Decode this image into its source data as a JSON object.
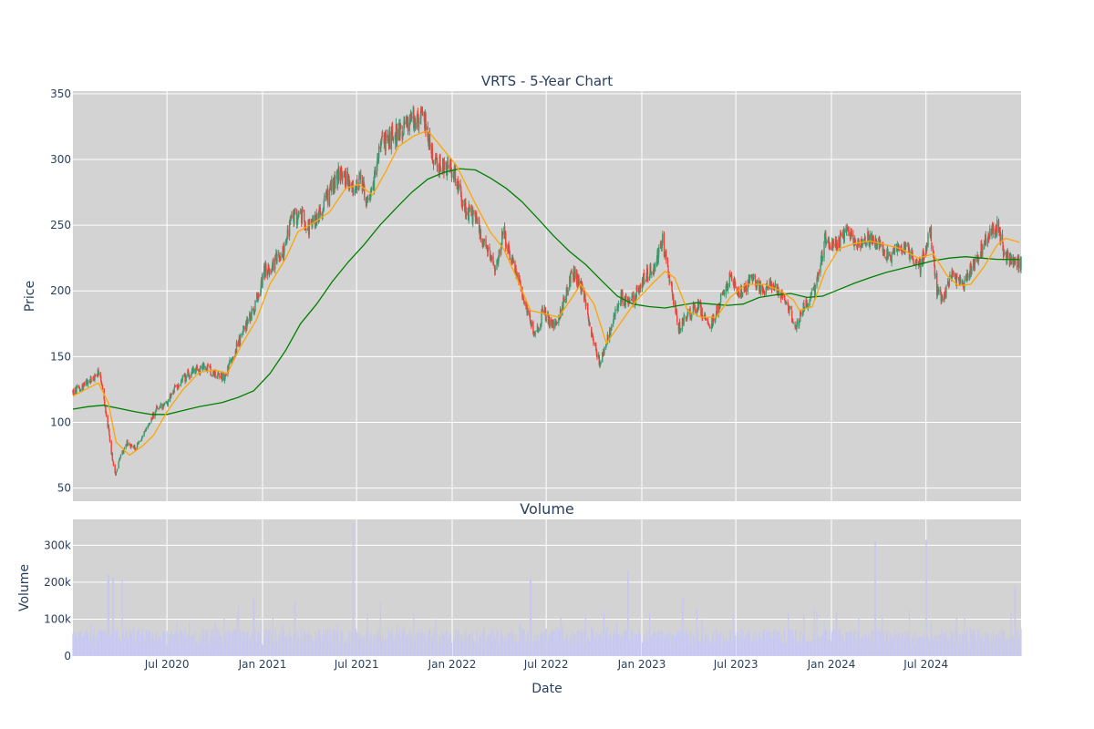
{
  "chart_data": [
    {
      "type": "candlestick",
      "title": "VRTS - 5-Year Chart",
      "ylabel": "Price",
      "ylim": [
        40,
        352
      ],
      "yticks": [
        50,
        100,
        150,
        200,
        250,
        300,
        350
      ],
      "grid": true,
      "legend": "none",
      "colors": {
        "up": "#3d9970",
        "down": "#ef4136",
        "ma_short": "#ffa500",
        "ma_long": "#008000",
        "plot_bg": "#d3d3d3"
      },
      "price_path": [
        {
          "x": "2020-01-02",
          "y": 123
        },
        {
          "x": "2020-01-20",
          "y": 127
        },
        {
          "x": "2020-02-10",
          "y": 133
        },
        {
          "x": "2020-02-21",
          "y": 138
        },
        {
          "x": "2020-03-05",
          "y": 110
        },
        {
          "x": "2020-03-16",
          "y": 78
        },
        {
          "x": "2020-03-23",
          "y": 60
        },
        {
          "x": "2020-04-01",
          "y": 72
        },
        {
          "x": "2020-04-15",
          "y": 85
        },
        {
          "x": "2020-05-01",
          "y": 80
        },
        {
          "x": "2020-05-20",
          "y": 92
        },
        {
          "x": "2020-06-10",
          "y": 110
        },
        {
          "x": "2020-07-01",
          "y": 115
        },
        {
          "x": "2020-07-20",
          "y": 128
        },
        {
          "x": "2020-08-15",
          "y": 138
        },
        {
          "x": "2020-09-10",
          "y": 142
        },
        {
          "x": "2020-10-01",
          "y": 137
        },
        {
          "x": "2020-10-20",
          "y": 135
        },
        {
          "x": "2020-11-05",
          "y": 150
        },
        {
          "x": "2020-11-25",
          "y": 170
        },
        {
          "x": "2020-12-15",
          "y": 185
        },
        {
          "x": "2021-01-05",
          "y": 215
        },
        {
          "x": "2021-01-20",
          "y": 220
        },
        {
          "x": "2021-02-10",
          "y": 230
        },
        {
          "x": "2021-02-25",
          "y": 255
        },
        {
          "x": "2021-03-15",
          "y": 258
        },
        {
          "x": "2021-04-01",
          "y": 248
        },
        {
          "x": "2021-04-20",
          "y": 258
        },
        {
          "x": "2021-05-10",
          "y": 275
        },
        {
          "x": "2021-06-01",
          "y": 292
        },
        {
          "x": "2021-06-20",
          "y": 278
        },
        {
          "x": "2021-07-10",
          "y": 282
        },
        {
          "x": "2021-07-25",
          "y": 262
        },
        {
          "x": "2021-08-15",
          "y": 310
        },
        {
          "x": "2021-09-10",
          "y": 318
        },
        {
          "x": "2021-10-01",
          "y": 325
        },
        {
          "x": "2021-10-20",
          "y": 332
        },
        {
          "x": "2021-11-10",
          "y": 330
        },
        {
          "x": "2021-11-25",
          "y": 300
        },
        {
          "x": "2021-12-15",
          "y": 295
        },
        {
          "x": "2022-01-05",
          "y": 292
        },
        {
          "x": "2022-01-25",
          "y": 262
        },
        {
          "x": "2022-02-15",
          "y": 255
        },
        {
          "x": "2022-03-05",
          "y": 235
        },
        {
          "x": "2022-03-25",
          "y": 215
        },
        {
          "x": "2022-04-10",
          "y": 245
        },
        {
          "x": "2022-04-25",
          "y": 222
        },
        {
          "x": "2022-05-15",
          "y": 200
        },
        {
          "x": "2022-06-10",
          "y": 165
        },
        {
          "x": "2022-06-25",
          "y": 185
        },
        {
          "x": "2022-07-15",
          "y": 173
        },
        {
          "x": "2022-08-05",
          "y": 192
        },
        {
          "x": "2022-08-20",
          "y": 215
        },
        {
          "x": "2022-09-10",
          "y": 200
        },
        {
          "x": "2022-09-25",
          "y": 168
        },
        {
          "x": "2022-10-13",
          "y": 145
        },
        {
          "x": "2022-11-01",
          "y": 170
        },
        {
          "x": "2022-11-20",
          "y": 195
        },
        {
          "x": "2022-12-10",
          "y": 190
        },
        {
          "x": "2023-01-05",
          "y": 210
        },
        {
          "x": "2023-01-25",
          "y": 218
        },
        {
          "x": "2023-02-10",
          "y": 238
        },
        {
          "x": "2023-02-20",
          "y": 215
        },
        {
          "x": "2023-03-13",
          "y": 172
        },
        {
          "x": "2023-04-01",
          "y": 183
        },
        {
          "x": "2023-04-20",
          "y": 190
        },
        {
          "x": "2023-05-10",
          "y": 170
        },
        {
          "x": "2023-06-01",
          "y": 192
        },
        {
          "x": "2023-06-20",
          "y": 210
        },
        {
          "x": "2023-07-10",
          "y": 198
        },
        {
          "x": "2023-08-01",
          "y": 210
        },
        {
          "x": "2023-08-20",
          "y": 200
        },
        {
          "x": "2023-09-10",
          "y": 205
        },
        {
          "x": "2023-10-01",
          "y": 195
        },
        {
          "x": "2023-10-26",
          "y": 172
        },
        {
          "x": "2023-11-10",
          "y": 190
        },
        {
          "x": "2023-12-01",
          "y": 200
        },
        {
          "x": "2023-12-20",
          "y": 240
        },
        {
          "x": "2024-01-10",
          "y": 235
        },
        {
          "x": "2024-02-01",
          "y": 245
        },
        {
          "x": "2024-02-20",
          "y": 237
        },
        {
          "x": "2024-03-10",
          "y": 240
        },
        {
          "x": "2024-04-01",
          "y": 235
        },
        {
          "x": "2024-04-20",
          "y": 225
        },
        {
          "x": "2024-05-10",
          "y": 235
        },
        {
          "x": "2024-06-01",
          "y": 228
        },
        {
          "x": "2024-06-20",
          "y": 218
        },
        {
          "x": "2024-07-10",
          "y": 245
        },
        {
          "x": "2024-07-22",
          "y": 200
        },
        {
          "x": "2024-08-05",
          "y": 195
        },
        {
          "x": "2024-08-20",
          "y": 212
        },
        {
          "x": "2024-09-10",
          "y": 205
        },
        {
          "x": "2024-10-01",
          "y": 220
        },
        {
          "x": "2024-10-25",
          "y": 240
        },
        {
          "x": "2024-11-15",
          "y": 248
        },
        {
          "x": "2024-12-01",
          "y": 225
        },
        {
          "x": "2024-12-20",
          "y": 222
        }
      ],
      "ma_short": [
        {
          "x": "2020-01-02",
          "y": 120
        },
        {
          "x": "2020-02-20",
          "y": 130
        },
        {
          "x": "2020-03-10",
          "y": 115
        },
        {
          "x": "2020-03-25",
          "y": 85
        },
        {
          "x": "2020-04-20",
          "y": 75
        },
        {
          "x": "2020-05-15",
          "y": 82
        },
        {
          "x": "2020-06-05",
          "y": 90
        },
        {
          "x": "2020-07-01",
          "y": 108
        },
        {
          "x": "2020-08-01",
          "y": 125
        },
        {
          "x": "2020-09-01",
          "y": 138
        },
        {
          "x": "2020-10-01",
          "y": 140
        },
        {
          "x": "2020-10-25",
          "y": 137
        },
        {
          "x": "2020-11-20",
          "y": 158
        },
        {
          "x": "2020-12-20",
          "y": 178
        },
        {
          "x": "2021-01-15",
          "y": 205
        },
        {
          "x": "2021-02-15",
          "y": 225
        },
        {
          "x": "2021-03-10",
          "y": 245
        },
        {
          "x": "2021-04-10",
          "y": 252
        },
        {
          "x": "2021-05-10",
          "y": 260
        },
        {
          "x": "2021-06-10",
          "y": 278
        },
        {
          "x": "2021-07-05",
          "y": 281
        },
        {
          "x": "2021-08-01",
          "y": 273
        },
        {
          "x": "2021-08-25",
          "y": 290
        },
        {
          "x": "2021-09-20",
          "y": 310
        },
        {
          "x": "2021-10-20",
          "y": 318
        },
        {
          "x": "2021-11-15",
          "y": 322
        },
        {
          "x": "2021-12-10",
          "y": 310
        },
        {
          "x": "2022-01-10",
          "y": 295
        },
        {
          "x": "2022-02-10",
          "y": 270
        },
        {
          "x": "2022-03-15",
          "y": 245
        },
        {
          "x": "2022-04-10",
          "y": 232
        },
        {
          "x": "2022-05-05",
          "y": 210
        },
        {
          "x": "2022-06-01",
          "y": 185
        },
        {
          "x": "2022-06-25",
          "y": 183
        },
        {
          "x": "2022-07-25",
          "y": 180
        },
        {
          "x": "2022-08-20",
          "y": 195
        },
        {
          "x": "2022-09-05",
          "y": 205
        },
        {
          "x": "2022-10-01",
          "y": 190
        },
        {
          "x": "2022-10-25",
          "y": 160
        },
        {
          "x": "2022-11-20",
          "y": 175
        },
        {
          "x": "2022-12-20",
          "y": 192
        },
        {
          "x": "2023-01-20",
          "y": 205
        },
        {
          "x": "2023-02-15",
          "y": 215
        },
        {
          "x": "2023-03-05",
          "y": 210
        },
        {
          "x": "2023-03-30",
          "y": 185
        },
        {
          "x": "2023-04-25",
          "y": 180
        },
        {
          "x": "2023-05-25",
          "y": 180
        },
        {
          "x": "2023-06-20",
          "y": 195
        },
        {
          "x": "2023-07-20",
          "y": 205
        },
        {
          "x": "2023-08-25",
          "y": 205
        },
        {
          "x": "2023-09-25",
          "y": 200
        },
        {
          "x": "2023-10-20",
          "y": 193
        },
        {
          "x": "2023-11-01",
          "y": 185
        },
        {
          "x": "2023-11-25",
          "y": 188
        },
        {
          "x": "2023-12-20",
          "y": 215
        },
        {
          "x": "2024-01-15",
          "y": 232
        },
        {
          "x": "2024-02-15",
          "y": 236
        },
        {
          "x": "2024-03-15",
          "y": 238
        },
        {
          "x": "2024-04-15",
          "y": 235
        },
        {
          "x": "2024-05-15",
          "y": 232
        },
        {
          "x": "2024-06-15",
          "y": 225
        },
        {
          "x": "2024-07-15",
          "y": 228
        },
        {
          "x": "2024-08-10",
          "y": 212
        },
        {
          "x": "2024-09-01",
          "y": 204
        },
        {
          "x": "2024-09-25",
          "y": 205
        },
        {
          "x": "2024-10-20",
          "y": 218
        },
        {
          "x": "2024-11-15",
          "y": 235
        },
        {
          "x": "2024-12-01",
          "y": 240
        },
        {
          "x": "2024-12-28",
          "y": 237
        }
      ],
      "ma_long": [
        {
          "x": "2020-01-02",
          "y": 110
        },
        {
          "x": "2020-02-01",
          "y": 112
        },
        {
          "x": "2020-03-01",
          "y": 113
        },
        {
          "x": "2020-05-01",
          "y": 108
        },
        {
          "x": "2020-06-01",
          "y": 106
        },
        {
          "x": "2020-07-01",
          "y": 106
        },
        {
          "x": "2020-08-01",
          "y": 109
        },
        {
          "x": "2020-09-01",
          "y": 112
        },
        {
          "x": "2020-10-15",
          "y": 115
        },
        {
          "x": "2020-11-15",
          "y": 119
        },
        {
          "x": "2020-12-15",
          "y": 124
        },
        {
          "x": "2021-01-15",
          "y": 137
        },
        {
          "x": "2021-02-15",
          "y": 155
        },
        {
          "x": "2021-03-15",
          "y": 175
        },
        {
          "x": "2021-04-15",
          "y": 190
        },
        {
          "x": "2021-05-15",
          "y": 207
        },
        {
          "x": "2021-06-15",
          "y": 222
        },
        {
          "x": "2021-07-15",
          "y": 235
        },
        {
          "x": "2021-08-15",
          "y": 250
        },
        {
          "x": "2021-09-15",
          "y": 263
        },
        {
          "x": "2021-10-15",
          "y": 275
        },
        {
          "x": "2021-11-15",
          "y": 285
        },
        {
          "x": "2021-12-15",
          "y": 290
        },
        {
          "x": "2022-01-15",
          "y": 293
        },
        {
          "x": "2022-02-15",
          "y": 292
        },
        {
          "x": "2022-03-15",
          "y": 286
        },
        {
          "x": "2022-04-15",
          "y": 278
        },
        {
          "x": "2022-05-15",
          "y": 268
        },
        {
          "x": "2022-06-15",
          "y": 255
        },
        {
          "x": "2022-07-15",
          "y": 242
        },
        {
          "x": "2022-08-15",
          "y": 230
        },
        {
          "x": "2022-09-15",
          "y": 220
        },
        {
          "x": "2022-10-15",
          "y": 208
        },
        {
          "x": "2022-11-15",
          "y": 196
        },
        {
          "x": "2022-12-15",
          "y": 190
        },
        {
          "x": "2023-01-15",
          "y": 188
        },
        {
          "x": "2023-02-15",
          "y": 187
        },
        {
          "x": "2023-03-15",
          "y": 189
        },
        {
          "x": "2023-04-15",
          "y": 191
        },
        {
          "x": "2023-05-15",
          "y": 190
        },
        {
          "x": "2023-06-15",
          "y": 189
        },
        {
          "x": "2023-07-15",
          "y": 190
        },
        {
          "x": "2023-08-15",
          "y": 195
        },
        {
          "x": "2023-09-15",
          "y": 197
        },
        {
          "x": "2023-10-15",
          "y": 198
        },
        {
          "x": "2023-11-15",
          "y": 195
        },
        {
          "x": "2023-12-15",
          "y": 196
        },
        {
          "x": "2024-01-15",
          "y": 201
        },
        {
          "x": "2024-02-15",
          "y": 206
        },
        {
          "x": "2024-03-15",
          "y": 210
        },
        {
          "x": "2024-04-15",
          "y": 214
        },
        {
          "x": "2024-05-15",
          "y": 217
        },
        {
          "x": "2024-06-15",
          "y": 220
        },
        {
          "x": "2024-07-15",
          "y": 223
        },
        {
          "x": "2024-08-15",
          "y": 225
        },
        {
          "x": "2024-09-15",
          "y": 226
        },
        {
          "x": "2024-10-15",
          "y": 225
        },
        {
          "x": "2024-11-15",
          "y": 224
        },
        {
          "x": "2024-12-28",
          "y": 224
        }
      ]
    },
    {
      "type": "bar",
      "title": "Volume",
      "xlabel": "Date",
      "ylabel": "Volume",
      "ylim": [
        0,
        370000
      ],
      "yticks": [
        {
          "value": 0,
          "label": "0"
        },
        {
          "value": 100000,
          "label": "100k"
        },
        {
          "value": 200000,
          "label": "200k"
        },
        {
          "value": 300000,
          "label": "300k"
        }
      ],
      "xticks": [
        {
          "value": "2020-07-01",
          "label": "Jul 2020"
        },
        {
          "value": "2021-01-01",
          "label": "Jan 2021"
        },
        {
          "value": "2021-07-01",
          "label": "Jul 2021"
        },
        {
          "value": "2022-01-01",
          "label": "Jan 2022"
        },
        {
          "value": "2022-07-01",
          "label": "Jul 2022"
        },
        {
          "value": "2023-01-01",
          "label": "Jan 2023"
        },
        {
          "value": "2023-07-01",
          "label": "Jul 2023"
        },
        {
          "value": "2024-01-01",
          "label": "Jan 2024"
        },
        {
          "value": "2024-07-01",
          "label": "Jul 2024"
        }
      ],
      "xlim": [
        "2020-01-02",
        "2024-12-31"
      ],
      "grid": true,
      "colors": {
        "bar": "#c8c8f0",
        "plot_bg": "#d3d3d3"
      },
      "volume_spikes": [
        {
          "x": "2020-03-10",
          "y": 220000
        },
        {
          "x": "2020-03-20",
          "y": 215000
        },
        {
          "x": "2020-04-05",
          "y": 210000
        },
        {
          "x": "2020-11-15",
          "y": 135000
        },
        {
          "x": "2020-12-15",
          "y": 155000
        },
        {
          "x": "2021-03-05",
          "y": 150000
        },
        {
          "x": "2021-06-25",
          "y": 360000
        },
        {
          "x": "2021-08-15",
          "y": 145000
        },
        {
          "x": "2022-06-01",
          "y": 210000
        },
        {
          "x": "2022-12-05",
          "y": 230000
        },
        {
          "x": "2023-03-20",
          "y": 155000
        },
        {
          "x": "2024-03-25",
          "y": 310000
        },
        {
          "x": "2024-07-01",
          "y": 315000
        },
        {
          "x": "2024-12-20",
          "y": 190000
        }
      ]
    }
  ]
}
